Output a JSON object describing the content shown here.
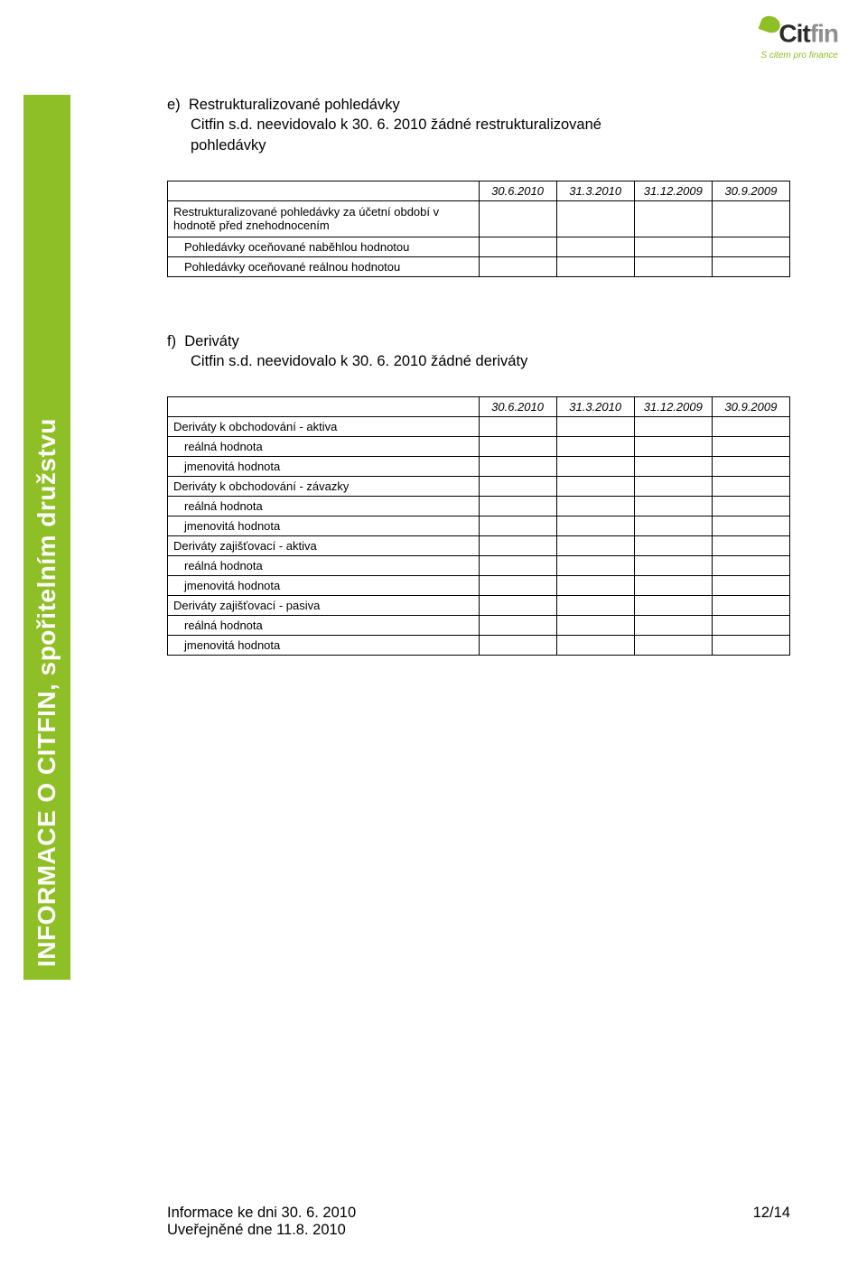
{
  "logo": {
    "name": "Citfin",
    "tagline": "S citem pro finance",
    "primary_color": "#8fbf26",
    "grey": "#8f8f8f"
  },
  "sidebar": {
    "text": "INFORMACE O CITFIN, spořitelním družstvu"
  },
  "section_e": {
    "bullet": "e)",
    "title": "Restrukturalizované pohledávky",
    "line2": "Citfin s.d. neevidovalo k 30. 6. 2010 žádné restrukturalizované",
    "line3": "pohledávky"
  },
  "table1": {
    "headers": [
      "30.6.2010",
      "31.3.2010",
      "31.12.2009",
      "30.9.2009"
    ],
    "rows": [
      {
        "label": "Restrukturalizované pohledávky za účetní období v hodnotě před znehodnocením",
        "tall": true
      },
      {
        "label": "Pohledávky oceňované naběhlou hodnotou",
        "indent": true
      },
      {
        "label": "Pohledávky oceňované reálnou hodnotou",
        "indent": true
      }
    ]
  },
  "section_f": {
    "bullet": "f)",
    "title": "Deriváty",
    "line2": "Citfin s.d. neevidovalo k 30. 6. 2010 žádné deriváty"
  },
  "table2": {
    "headers": [
      "30.6.2010",
      "31.3.2010",
      "31.12.2009",
      "30.9.2009"
    ],
    "rows": [
      {
        "label": "Deriváty k obchodování - aktiva"
      },
      {
        "label": "reálná hodnota",
        "indent": true
      },
      {
        "label": "jmenovitá hodnota",
        "indent": true
      },
      {
        "label": "Deriváty k obchodování - závazky"
      },
      {
        "label": "reálná hodnota",
        "indent": true
      },
      {
        "label": "jmenovitá hodnota",
        "indent": true
      },
      {
        "label": "Deriváty zajišťovací - aktiva"
      },
      {
        "label": "reálná hodnota",
        "indent": true
      },
      {
        "label": "jmenovitá hodnota",
        "indent": true
      },
      {
        "label": "Deriváty zajišťovací - pasiva"
      },
      {
        "label": "reálná hodnota",
        "indent": true
      },
      {
        "label": "jmenovitá hodnota",
        "indent": true
      }
    ]
  },
  "footer": {
    "line1_left": "Informace ke dni 30. 6. 2010",
    "line1_right": "12/14",
    "line2": "Uveřejněné dne  11.8. 2010"
  }
}
